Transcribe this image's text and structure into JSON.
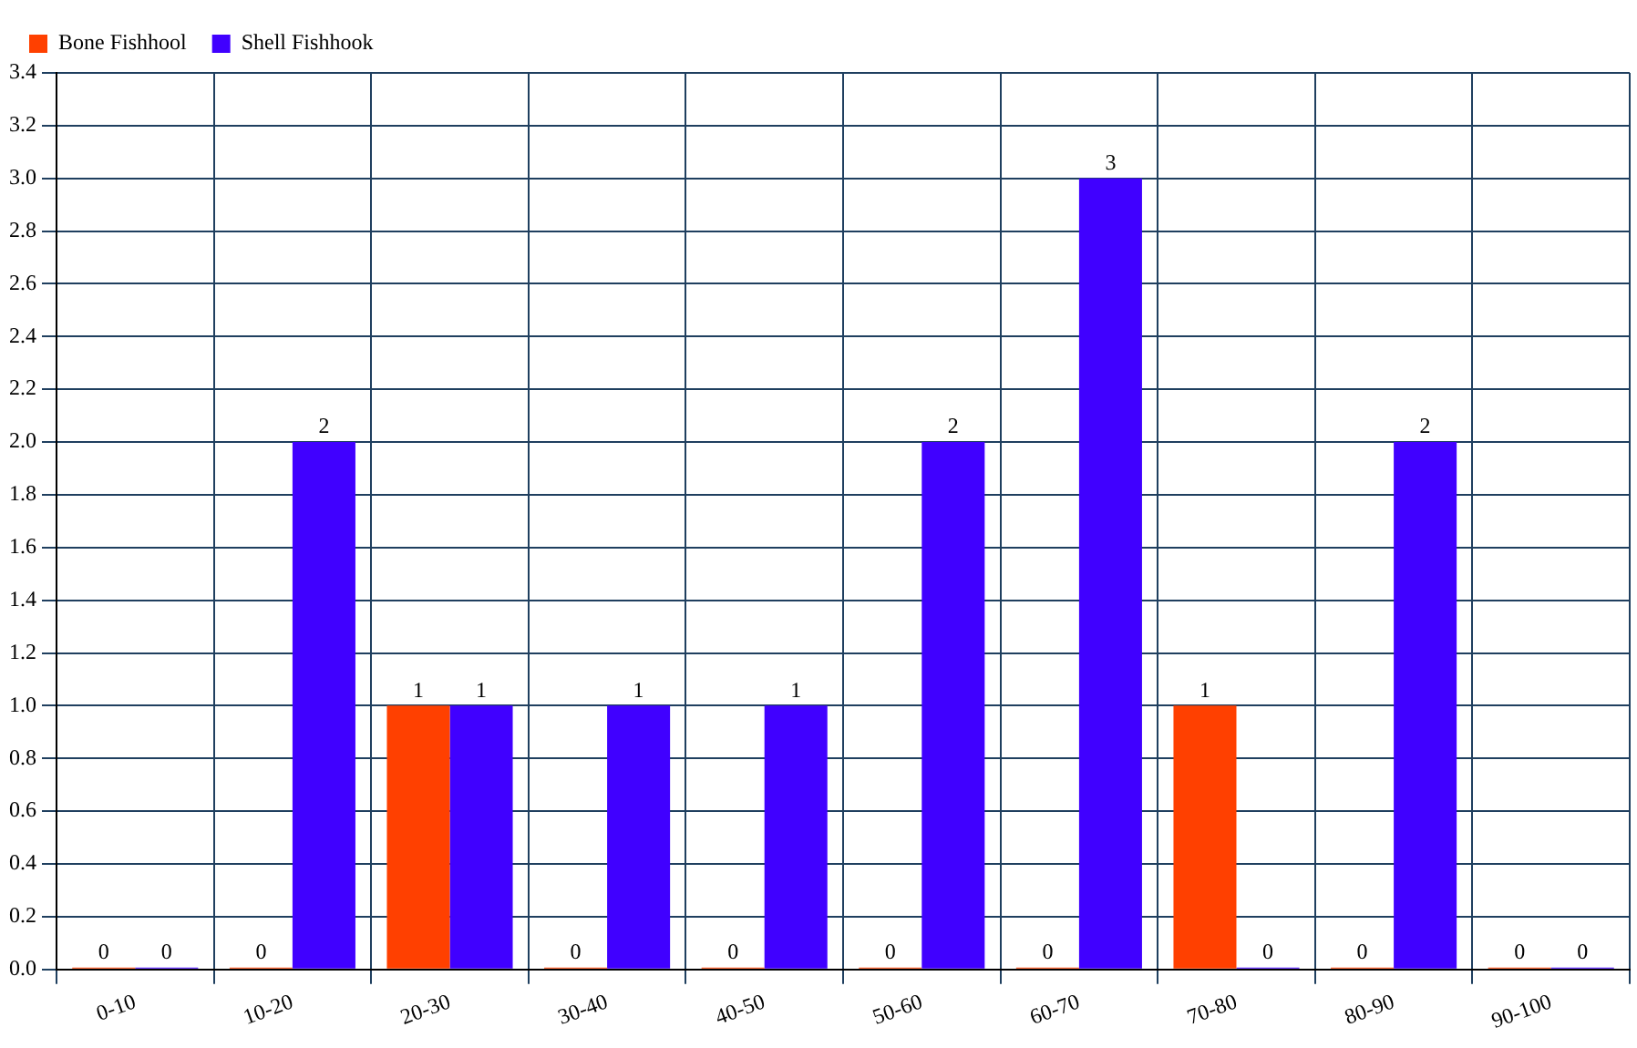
{
  "chart_data": {
    "type": "bar",
    "categories": [
      "0-10",
      "10-20",
      "20-30",
      "30-40",
      "40-50",
      "50-60",
      "60-70",
      "70-80",
      "80-90",
      "90-100"
    ],
    "series": [
      {
        "name": "Bone Fishhool",
        "color": "#ff4000",
        "values": [
          0,
          0,
          1,
          0,
          0,
          0,
          0,
          1,
          0,
          0
        ]
      },
      {
        "name": "Shell Fishhook",
        "color": "#4000ff",
        "values": [
          0,
          2,
          1,
          1,
          1,
          2,
          3,
          0,
          2,
          0
        ]
      }
    ],
    "ylim": [
      0,
      3.4
    ],
    "yticks": [
      {
        "value": 0,
        "label": "0.0"
      },
      {
        "value": 0.2,
        "label": "0.2"
      },
      {
        "value": 0.4,
        "label": "0.4"
      },
      {
        "value": 0.6,
        "label": "0.6"
      },
      {
        "value": 0.8,
        "label": "0.8"
      },
      {
        "value": 1,
        "label": "1.0"
      },
      {
        "value": 1.2,
        "label": "1.2"
      },
      {
        "value": 1.4,
        "label": "1.4"
      },
      {
        "value": 1.6,
        "label": "1.6"
      },
      {
        "value": 1.8,
        "label": "1.8"
      },
      {
        "value": 2,
        "label": "2.0"
      },
      {
        "value": 2.2,
        "label": "2.2"
      },
      {
        "value": 2.4,
        "label": "2.4"
      },
      {
        "value": 2.6,
        "label": "2.6"
      },
      {
        "value": 2.8,
        "label": "2.8"
      },
      {
        "value": 3,
        "label": "3.0"
      },
      {
        "value": 3.2,
        "label": "3.2"
      },
      {
        "value": 3.4,
        "label": "3.4"
      }
    ],
    "grid": true,
    "legend": "top left",
    "data_labels": true
  }
}
